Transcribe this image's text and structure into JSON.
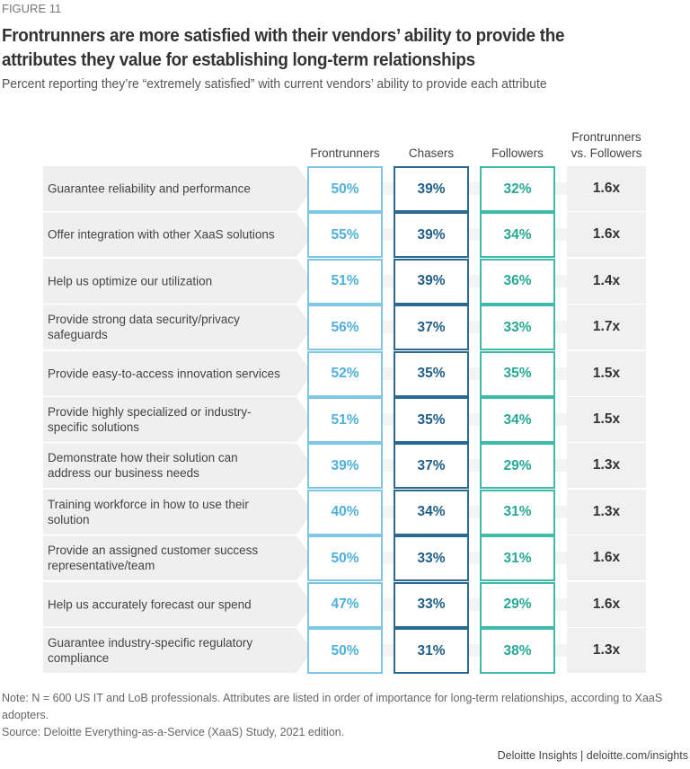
{
  "figure_label": "FIGURE 11",
  "chart_data": {
    "type": "table",
    "title": "Frontrunners are more satisfied with their vendors’ ability to provide the attributes they value for establishing long-term relationships",
    "subtitle": "Percent reporting they’re “extremely satisfied” with current vendors’ ability to provide each attribute",
    "columns": [
      "Frontrunners",
      "Chasers",
      "Followers",
      "Frontrunners vs. Followers"
    ],
    "colors": {
      "Frontrunners": "#4fb0dc",
      "Chasers": "#1f5e88",
      "Followers": "#27a896"
    },
    "rows": [
      {
        "label": "Guarantee reliability and performance",
        "frontrunners": "50%",
        "chasers": "39%",
        "followers": "32%",
        "ratio": "1.6x"
      },
      {
        "label": "Offer integration with other XaaS solutions",
        "frontrunners": "55%",
        "chasers": "39%",
        "followers": "34%",
        "ratio": "1.6x"
      },
      {
        "label": "Help us optimize our utilization",
        "frontrunners": "51%",
        "chasers": "39%",
        "followers": "36%",
        "ratio": "1.4x"
      },
      {
        "label": "Provide strong data security/privacy safeguards",
        "frontrunners": "56%",
        "chasers": "37%",
        "followers": "33%",
        "ratio": "1.7x"
      },
      {
        "label": "Provide easy-to-access innovation services",
        "frontrunners": "52%",
        "chasers": "35%",
        "followers": "35%",
        "ratio": "1.5x"
      },
      {
        "label": "Provide highly specialized or industry-specific solutions",
        "frontrunners": "51%",
        "chasers": "35%",
        "followers": "34%",
        "ratio": "1.5x"
      },
      {
        "label": "Demonstrate how their solution can address our business needs",
        "frontrunners": "39%",
        "chasers": "37%",
        "followers": "29%",
        "ratio": "1.3x"
      },
      {
        "label": "Training workforce in how to use their solution",
        "frontrunners": "40%",
        "chasers": "34%",
        "followers": "31%",
        "ratio": "1.3x"
      },
      {
        "label": "Provide an assigned customer success representative/team",
        "frontrunners": "50%",
        "chasers": "33%",
        "followers": "31%",
        "ratio": "1.6x"
      },
      {
        "label": "Help us accurately forecast our spend",
        "frontrunners": "47%",
        "chasers": "33%",
        "followers": "29%",
        "ratio": "1.6x"
      },
      {
        "label": "Guarantee industry-specific regulatory compliance",
        "frontrunners": "50%",
        "chasers": "31%",
        "followers": "38%",
        "ratio": "1.3x"
      }
    ]
  },
  "header": {
    "ratio_line1": "Frontrunners",
    "ratio_line2": "vs. Followers"
  },
  "note": "Note: N = 600 US IT and LoB professionals. Attributes are listed in order of importance for long-term relationships, according to XaaS adopters.",
  "source": "Source: Deloitte Everything-as-a-Service (XaaS) Study, 2021 edition.",
  "credit": "Deloitte Insights | deloitte.com/insights"
}
